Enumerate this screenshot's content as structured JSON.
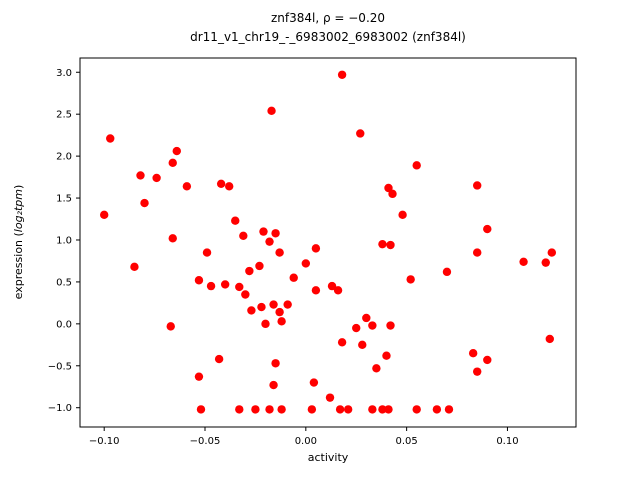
{
  "figure": {
    "title_line1": "znf384l, ρ = −0.20",
    "title_line2": "dr11_v1_chr19_-_6983002_6983002 (znf384l)",
    "xlabel": "activity",
    "ylabel_parts": {
      "prefix": "expression (",
      "italic": "log₂tpm",
      "suffix": ")"
    }
  },
  "chart_data": {
    "type": "scatter",
    "title": "znf384l, ρ = −0.20",
    "subtitle": "dr11_v1_chr19_-_6983002_6983002 (znf384l)",
    "xlabel": "activity",
    "ylabel": "expression (log2 tpm)",
    "legend": "none",
    "grid": false,
    "marker_color": "#ff0000",
    "xlim": [
      -0.112,
      0.134
    ],
    "ylim": [
      -1.23,
      3.17
    ],
    "xticks": [
      {
        "v": -0.1,
        "label": "−0.10"
      },
      {
        "v": -0.05,
        "label": "−0.05"
      },
      {
        "v": 0.0,
        "label": "0.00"
      },
      {
        "v": 0.05,
        "label": "0.05"
      },
      {
        "v": 0.1,
        "label": "0.10"
      }
    ],
    "yticks": [
      {
        "v": -1.0,
        "label": "−1.0"
      },
      {
        "v": -0.5,
        "label": "−0.5"
      },
      {
        "v": 0.0,
        "label": "0.0"
      },
      {
        "v": 0.5,
        "label": "0.5"
      },
      {
        "v": 1.0,
        "label": "1.0"
      },
      {
        "v": 1.5,
        "label": "1.5"
      },
      {
        "v": 2.0,
        "label": "2.0"
      },
      {
        "v": 2.5,
        "label": "2.5"
      },
      {
        "v": 3.0,
        "label": "3.0"
      }
    ],
    "points": [
      [
        0.018,
        2.97
      ],
      [
        -0.017,
        2.54
      ],
      [
        0.027,
        2.27
      ],
      [
        -0.097,
        2.21
      ],
      [
        -0.064,
        2.06
      ],
      [
        -0.066,
        1.92
      ],
      [
        0.055,
        1.89
      ],
      [
        -0.082,
        1.77
      ],
      [
        -0.074,
        1.74
      ],
      [
        -0.059,
        1.64
      ],
      [
        -0.042,
        1.67
      ],
      [
        -0.038,
        1.64
      ],
      [
        0.041,
        1.62
      ],
      [
        0.043,
        1.55
      ],
      [
        0.085,
        1.65
      ],
      [
        -0.08,
        1.44
      ],
      [
        -0.1,
        1.3
      ],
      [
        0.048,
        1.3
      ],
      [
        -0.035,
        1.23
      ],
      [
        -0.066,
        1.02
      ],
      [
        -0.031,
        1.05
      ],
      [
        -0.021,
        1.1
      ],
      [
        -0.015,
        1.08
      ],
      [
        -0.018,
        0.98
      ],
      [
        0.09,
        1.13
      ],
      [
        -0.049,
        0.85
      ],
      [
        0.005,
        0.9
      ],
      [
        0.038,
        0.95
      ],
      [
        0.042,
        0.94
      ],
      [
        0.085,
        0.85
      ],
      [
        0.122,
        0.85
      ],
      [
        -0.013,
        0.85
      ],
      [
        0.108,
        0.74
      ],
      [
        0.119,
        0.73
      ],
      [
        -0.085,
        0.68
      ],
      [
        0.0,
        0.72
      ],
      [
        0.07,
        0.62
      ],
      [
        -0.028,
        0.63
      ],
      [
        -0.023,
        0.69
      ],
      [
        -0.053,
        0.52
      ],
      [
        -0.047,
        0.45
      ],
      [
        -0.04,
        0.47
      ],
      [
        -0.033,
        0.44
      ],
      [
        -0.006,
        0.55
      ],
      [
        0.005,
        0.4
      ],
      [
        0.013,
        0.45
      ],
      [
        0.016,
        0.4
      ],
      [
        0.052,
        0.53
      ],
      [
        -0.03,
        0.35
      ],
      [
        -0.022,
        0.2
      ],
      [
        -0.016,
        0.23
      ],
      [
        -0.009,
        0.23
      ],
      [
        -0.013,
        0.14
      ],
      [
        -0.027,
        0.16
      ],
      [
        -0.067,
        -0.03
      ],
      [
        -0.02,
        0.0
      ],
      [
        -0.012,
        0.03
      ],
      [
        0.03,
        0.07
      ],
      [
        0.033,
        -0.02
      ],
      [
        0.042,
        -0.02
      ],
      [
        0.025,
        -0.05
      ],
      [
        0.018,
        -0.22
      ],
      [
        0.028,
        -0.25
      ],
      [
        0.121,
        -0.18
      ],
      [
        -0.043,
        -0.42
      ],
      [
        -0.015,
        -0.47
      ],
      [
        0.04,
        -0.38
      ],
      [
        0.083,
        -0.35
      ],
      [
        0.09,
        -0.43
      ],
      [
        0.085,
        -0.57
      ],
      [
        0.035,
        -0.53
      ],
      [
        -0.053,
        -0.63
      ],
      [
        -0.016,
        -0.73
      ],
      [
        0.004,
        -0.7
      ],
      [
        0.012,
        -0.88
      ],
      [
        -0.052,
        -1.02
      ],
      [
        -0.033,
        -1.02
      ],
      [
        -0.025,
        -1.02
      ],
      [
        -0.018,
        -1.02
      ],
      [
        -0.012,
        -1.02
      ],
      [
        0.003,
        -1.02
      ],
      [
        0.017,
        -1.02
      ],
      [
        0.021,
        -1.02
      ],
      [
        0.033,
        -1.02
      ],
      [
        0.038,
        -1.02
      ],
      [
        0.041,
        -1.02
      ],
      [
        0.055,
        -1.02
      ],
      [
        0.065,
        -1.02
      ],
      [
        0.071,
        -1.02
      ]
    ]
  }
}
